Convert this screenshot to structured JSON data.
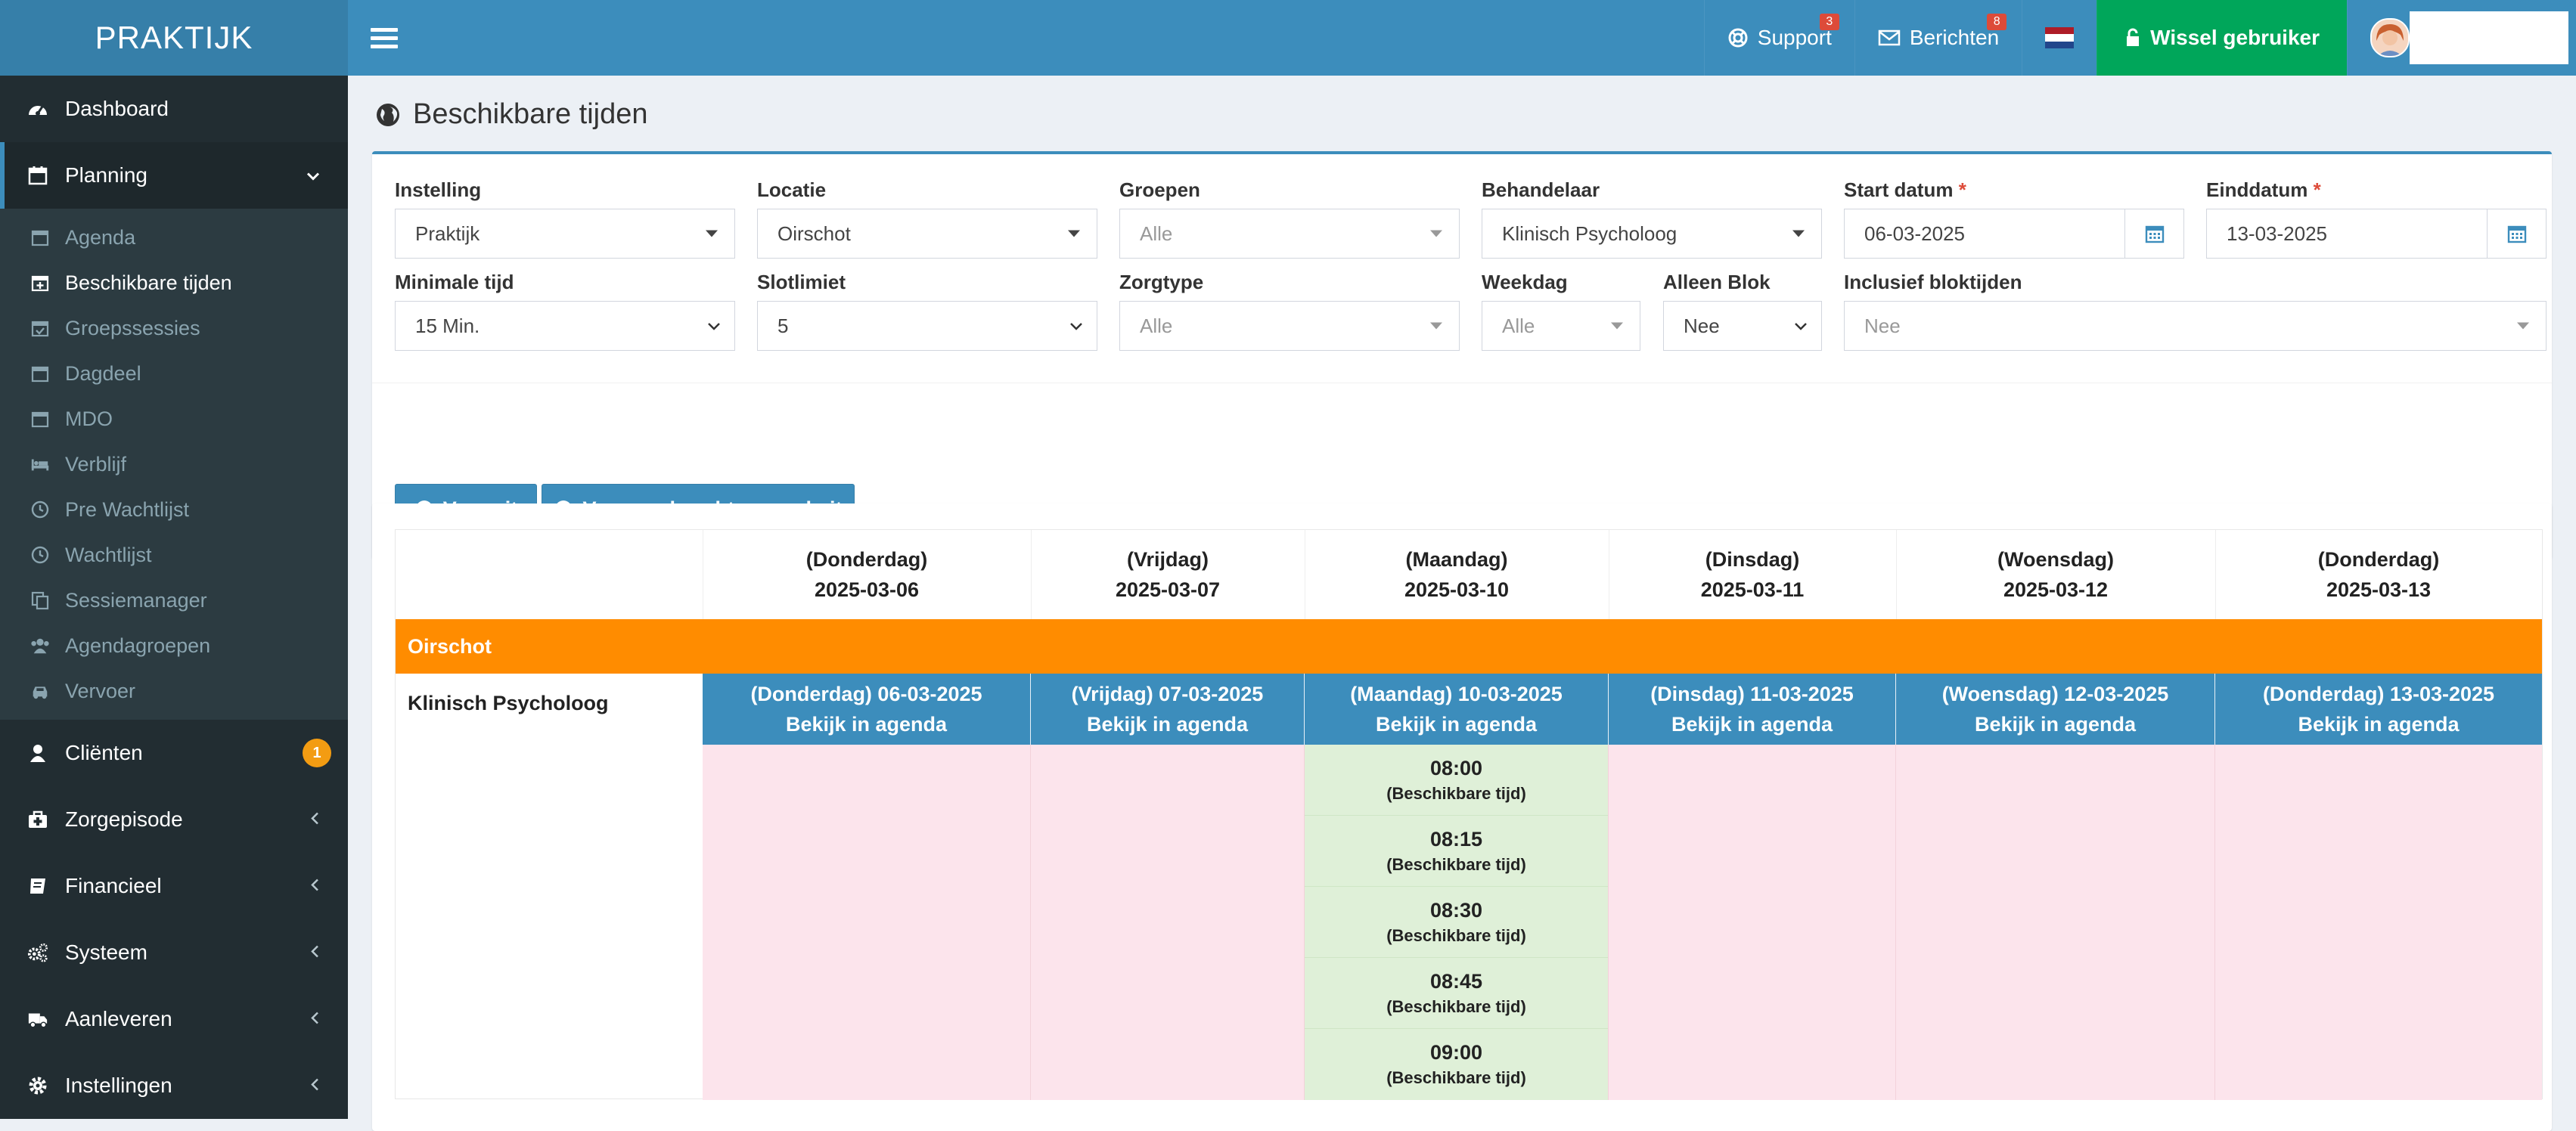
{
  "app": {
    "logo": "PRAKTIJK"
  },
  "sidebar": {
    "items": [
      {
        "label": "Dashboard",
        "icon": "dashboard-icon"
      },
      {
        "label": "Planning",
        "icon": "calendar-icon",
        "active": true
      }
    ],
    "planning_sub": [
      {
        "label": "Agenda",
        "icon": "calendar-icon"
      },
      {
        "label": "Beschikbare tijden",
        "icon": "calendar-plus-icon",
        "active": true
      },
      {
        "label": "Groepssessies",
        "icon": "calendar-check-icon"
      },
      {
        "label": "Dagdeel",
        "icon": "calendar-icon"
      },
      {
        "label": "MDO",
        "icon": "calendar-icon"
      },
      {
        "label": "Verblijf",
        "icon": "bed-icon"
      },
      {
        "label": "Pre Wachtlijst",
        "icon": "clock-icon"
      },
      {
        "label": "Wachtlijst",
        "icon": "clock-icon"
      },
      {
        "label": "Sessiemanager",
        "icon": "copy-icon"
      },
      {
        "label": "Agendagroepen",
        "icon": "users-icon"
      },
      {
        "label": "Vervoer",
        "icon": "car-icon"
      }
    ],
    "bottom_items": [
      {
        "label": "Cliënten",
        "icon": "user-icon",
        "badge": "1"
      },
      {
        "label": "Zorgepisode",
        "icon": "medkit-icon"
      },
      {
        "label": "Financieel",
        "icon": "book-icon"
      },
      {
        "label": "Systeem",
        "icon": "cogs-icon"
      },
      {
        "label": "Aanleveren",
        "icon": "truck-icon"
      },
      {
        "label": "Instellingen",
        "icon": "gear-icon"
      }
    ]
  },
  "topbar": {
    "support_label": "Support",
    "support_badge": "3",
    "messages_label": "Berichten",
    "messages_badge": "8",
    "switch_user_label": "Wissel gebruiker",
    "flag_colors": [
      "#ae1c28",
      "#ffffff",
      "#21468b"
    ]
  },
  "page": {
    "title": "Beschikbare tijden"
  },
  "filters": {
    "instelling": {
      "label": "Instelling",
      "value": "Praktijk"
    },
    "locatie": {
      "label": "Locatie",
      "value": "Oirschot"
    },
    "groepen": {
      "label": "Groepen",
      "value": "Alle"
    },
    "behandelaar": {
      "label": "Behandelaar",
      "value": "Klinisch Psycholoog"
    },
    "start_datum": {
      "label": "Start datum",
      "required": "*",
      "value": "06-03-2025"
    },
    "einddatum": {
      "label": "Einddatum",
      "required": "*",
      "value": "13-03-2025"
    },
    "minimale_tijd": {
      "label": "Minimale tijd",
      "value": "15 Min."
    },
    "slotlimiet": {
      "label": "Slotlimiet",
      "value": "5"
    },
    "zorgtype": {
      "label": "Zorgtype",
      "value": "Alle"
    },
    "weekdag": {
      "label": "Weekdag",
      "value": "Alle"
    },
    "alleen_blok": {
      "label": "Alleen Blok",
      "value": "Nee"
    },
    "inclusief_bloktijden": {
      "label": "Inclusief bloktijden",
      "value": "Nee"
    }
  },
  "actions": {
    "run_label": "Voer uit",
    "run_background_label": "Voer op de achtergrond uit"
  },
  "schedule": {
    "columns": [
      {
        "day": "(Donderdag)",
        "date": "2025-03-06",
        "head_day": "(Donderdag) 06-03-2025"
      },
      {
        "day": "(Vrijdag)",
        "date": "2025-03-07",
        "head_day": "(Vrijdag) 07-03-2025"
      },
      {
        "day": "(Maandag)",
        "date": "2025-03-10",
        "head_day": "(Maandag) 10-03-2025"
      },
      {
        "day": "(Dinsdag)",
        "date": "2025-03-11",
        "head_day": "(Dinsdag) 11-03-2025"
      },
      {
        "day": "(Woensdag)",
        "date": "2025-03-12",
        "head_day": "(Woensdag) 12-03-2025"
      },
      {
        "day": "(Donderdag)",
        "date": "2025-03-13",
        "head_day": "(Donderdag) 13-03-2025"
      }
    ],
    "view_in_agenda": "Bekijk in agenda",
    "location": "Oirschot",
    "practitioner": "Klinisch Psycholoog",
    "slot_status": "(Beschikbare tijd)",
    "slots": [
      "08:00",
      "08:15",
      "08:30",
      "08:45",
      "09:00"
    ]
  }
}
